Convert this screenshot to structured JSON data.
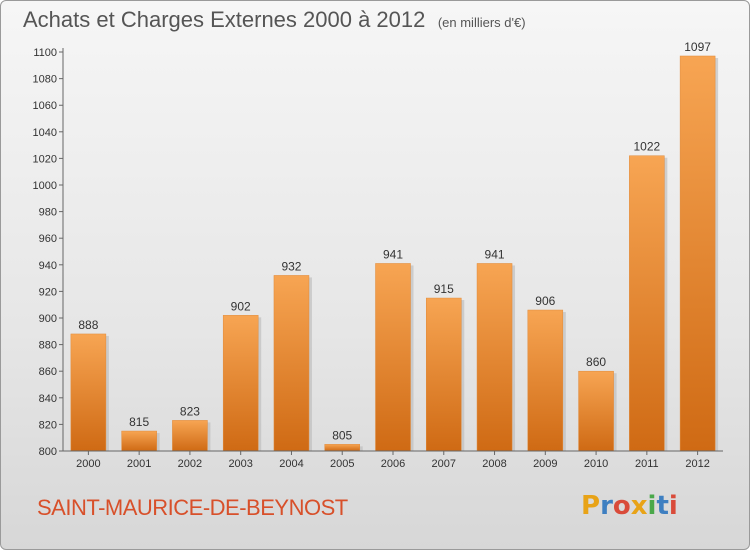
{
  "header": {
    "title": "Achats et Charges Externes 2000 à 2012",
    "subtitle": "(en milliers d'€)"
  },
  "footer": {
    "commune": "SAINT-MAURICE-DE-BEYNOST",
    "brand_letters": [
      "P",
      "r",
      "o",
      "x",
      "i",
      "t",
      "i"
    ],
    "brand_colors": [
      "#e8a317",
      "#3e7fc1",
      "#d94b3a",
      "#e8a317",
      "#4aa84a",
      "#3e7fc1",
      "#d94b3a"
    ]
  },
  "chart_data": {
    "type": "bar",
    "title": "Achats et Charges Externes 2000 à 2012",
    "subtitle": "(en milliers d'€)",
    "categories": [
      "2000",
      "2001",
      "2002",
      "2003",
      "2004",
      "2005",
      "2006",
      "2007",
      "2008",
      "2009",
      "2010",
      "2011",
      "2012"
    ],
    "values": [
      888,
      815,
      823,
      902,
      932,
      805,
      941,
      915,
      941,
      906,
      860,
      1022,
      1097
    ],
    "ylim": [
      800,
      1100
    ],
    "yticks": [
      800,
      820,
      840,
      860,
      880,
      900,
      920,
      940,
      960,
      980,
      1000,
      1020,
      1040,
      1060,
      1080,
      1100
    ],
    "grid": false,
    "bar_color": "#f0922f"
  }
}
